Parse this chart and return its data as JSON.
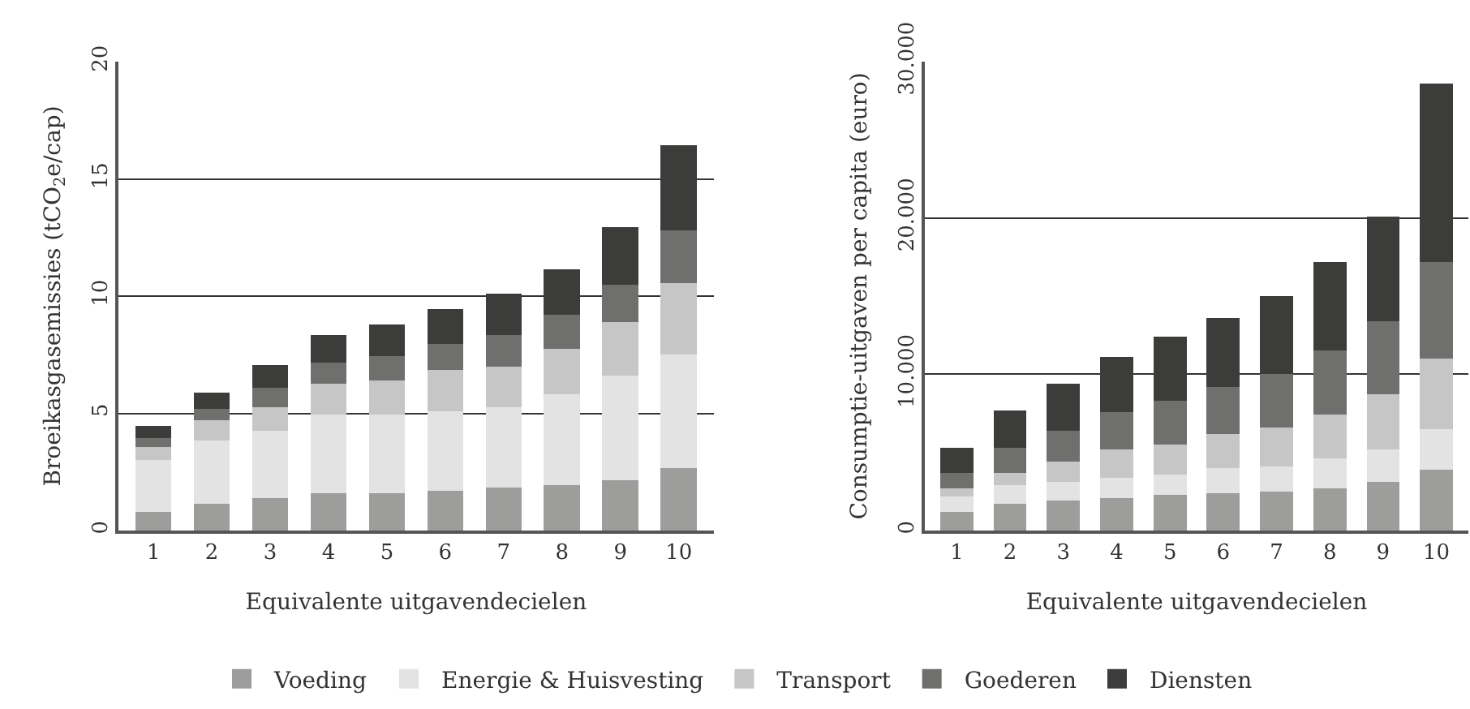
{
  "chart_data": [
    {
      "type": "bar",
      "stacked": true,
      "xlabel": "Equivalente uitgavendecielen",
      "ylabel": "Broeikasgasemissies (tCO$_{2}$e/cap)",
      "categories": [
        "1",
        "2",
        "3",
        "4",
        "5",
        "6",
        "7",
        "8",
        "9",
        "10"
      ],
      "ylim": [
        0,
        20
      ],
      "yticks": [
        0,
        5,
        10,
        15,
        20
      ],
      "grid": "y",
      "legend": "bottom",
      "series": [
        {
          "name": "Voeding",
          "color": "#9d9d9c",
          "values": [
            0.8,
            1.15,
            1.4,
            1.6,
            1.6,
            1.7,
            1.85,
            1.95,
            2.15,
            2.65
          ]
        },
        {
          "name": "Energie & Huisvesting",
          "color": "#e3e3e3",
          "values": [
            2.2,
            2.7,
            2.85,
            3.35,
            3.35,
            3.4,
            3.4,
            3.85,
            4.45,
            4.85
          ]
        },
        {
          "name": "Transport",
          "color": "#c6c6c6",
          "values": [
            0.55,
            0.85,
            1.0,
            1.3,
            1.45,
            1.75,
            1.75,
            1.95,
            2.3,
            3.05
          ]
        },
        {
          "name": "Goederen",
          "color": "#6f6f6e",
          "values": [
            0.4,
            0.5,
            0.85,
            0.9,
            1.05,
            1.1,
            1.35,
            1.45,
            1.6,
            2.25
          ]
        },
        {
          "name": "Diensten",
          "color": "#3c3c3b",
          "values": [
            0.5,
            0.7,
            0.95,
            1.2,
            1.35,
            1.5,
            1.75,
            1.95,
            2.45,
            3.65
          ]
        }
      ]
    },
    {
      "type": "bar",
      "stacked": true,
      "xlabel": "Equivalente uitgavendecielen",
      "ylabel": "Consumptie-uitgaven per capita (euro)",
      "categories": [
        "1",
        "2",
        "3",
        "4",
        "5",
        "6",
        "7",
        "8",
        "9",
        "10"
      ],
      "ylim": [
        0,
        30000
      ],
      "yticks": [
        0,
        {
          "value": 10000,
          "label": "10.000"
        },
        {
          "value": 20000,
          "label": "20.000"
        },
        {
          "value": 30000,
          "label": "30.000"
        }
      ],
      "grid": "y",
      "legend": false,
      "series": [
        {
          "color": "#9d9d9c",
          "values": [
            1200,
            1700,
            1900,
            2100,
            2300,
            2400,
            2500,
            2700,
            3100,
            3900
          ]
        },
        {
          "color": "#e3e3e3",
          "values": [
            1000,
            1200,
            1200,
            1300,
            1300,
            1600,
            1600,
            1900,
            2100,
            2600
          ]
        },
        {
          "color": "#c6c6c6",
          "values": [
            500,
            800,
            1300,
            1800,
            1900,
            2200,
            2500,
            2800,
            3500,
            4500
          ]
        },
        {
          "color": "#6f6f6e",
          "values": [
            1000,
            1600,
            2000,
            2400,
            2800,
            3000,
            3400,
            4100,
            4700,
            6200
          ]
        },
        {
          "color": "#3c3c3b",
          "values": [
            1600,
            2400,
            3000,
            3500,
            4100,
            4400,
            5000,
            5700,
            6700,
            11400
          ]
        }
      ]
    }
  ]
}
